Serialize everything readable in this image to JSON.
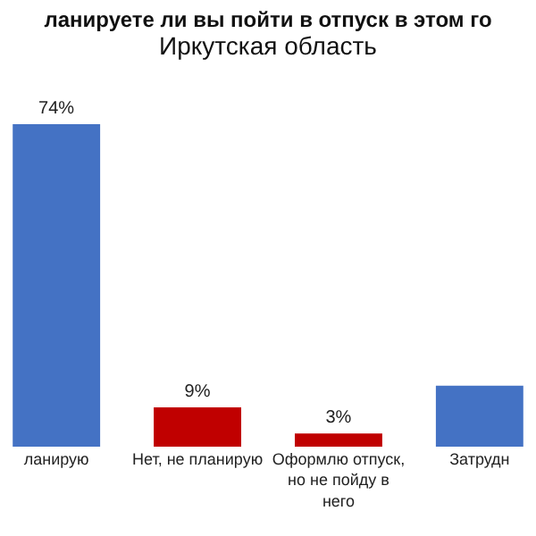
{
  "chart_data": {
    "type": "bar",
    "title": "ланируете ли вы пойти в отпуск в этом го",
    "subtitle": "Иркутская область",
    "categories": [
      "ланирую",
      "Нет, не планирую",
      "Оформлю отпуск, но не пойду в него",
      "Затрудн"
    ],
    "values": [
      74,
      9,
      3,
      14
    ],
    "colors": [
      "#4472c4",
      "#c00000",
      "#c00000",
      "#4472c4"
    ],
    "value_labels": [
      "74%",
      "9%",
      "3%",
      null
    ],
    "tick_labels": "x"
  }
}
